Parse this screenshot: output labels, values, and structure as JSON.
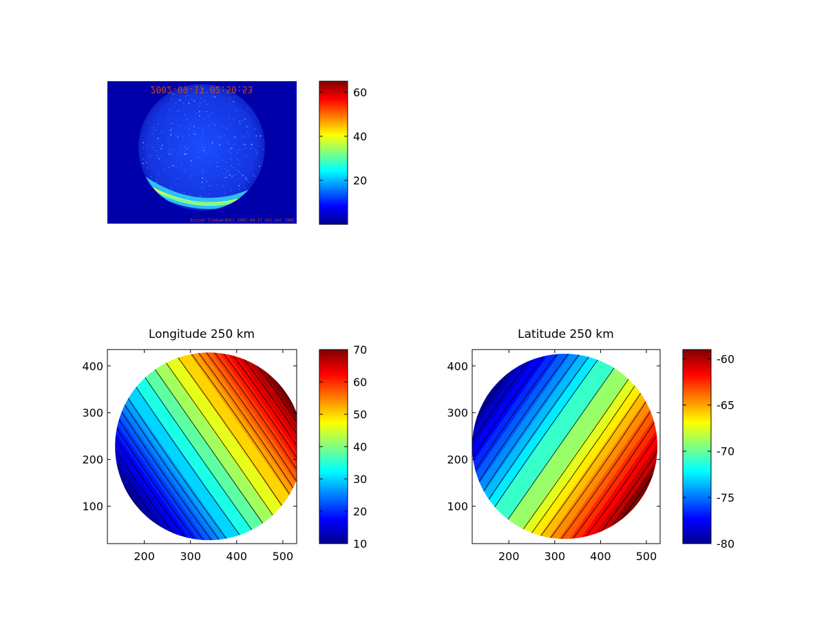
{
  "colors": {
    "background": "#ffffff",
    "axis": "#000000",
    "contour": "#000000",
    "sky_background": "#0000aa",
    "overlay_text": "#c24a1a",
    "colormap": [
      "#00008f",
      "#0000ff",
      "#0080ff",
      "#00ffff",
      "#80ff80",
      "#ffff00",
      "#ff8000",
      "#ff0000",
      "#800000"
    ]
  },
  "chart_data": [
    {
      "type": "heatmap",
      "title": "",
      "image": "all-sky camera image with green auroral arc",
      "overlay_top": "2002-09-17 02:50:53",
      "overlay_top_mirrored": true,
      "overlay_bottom": "Eiscat-Tromsø(ASC) 2002-09-17 nol.ovl 2002",
      "colorbar": {
        "range": [
          0,
          65
        ],
        "ticks": [
          20,
          40,
          60
        ]
      }
    },
    {
      "type": "heatmap",
      "title": "Longitude 250 km",
      "xlim": [
        120,
        530
      ],
      "ylim": [
        20,
        435
      ],
      "xticks": [
        200,
        300,
        400,
        500
      ],
      "yticks": [
        100,
        200,
        300,
        400
      ],
      "disk_center": [
        340,
        228
      ],
      "disk_radius": 202,
      "gradient_direction_deg": -35,
      "value_range": [
        10,
        70
      ],
      "contour_levels": [
        10,
        12,
        14,
        16,
        18,
        20,
        22,
        24,
        26,
        28,
        32,
        36,
        40,
        44,
        48,
        52,
        54,
        56,
        58,
        60,
        62,
        64,
        66,
        68
      ],
      "colorbar": {
        "range": [
          10,
          70
        ],
        "ticks": [
          10,
          20,
          30,
          40,
          50,
          60,
          70
        ]
      }
    },
    {
      "type": "heatmap",
      "title": "Latitude 250 km",
      "xlim": [
        120,
        530
      ],
      "ylim": [
        20,
        435
      ],
      "xticks": [
        200,
        300,
        400,
        500
      ],
      "yticks": [
        100,
        200,
        300,
        400
      ],
      "disk_center": [
        322,
        228
      ],
      "disk_radius": 200,
      "gradient_direction_deg": 35,
      "value_range": [
        -80,
        -59
      ],
      "contour_levels": [
        -80,
        -79,
        -78,
        -77,
        -76,
        -75,
        -74,
        -73,
        -72,
        -70,
        -68,
        -67,
        -66,
        -65,
        -64,
        -63,
        -62,
        -61,
        -60
      ],
      "colorbar": {
        "range": [
          -80,
          -59
        ],
        "ticks": [
          -80,
          -75,
          -70,
          -65,
          -60
        ]
      }
    }
  ]
}
